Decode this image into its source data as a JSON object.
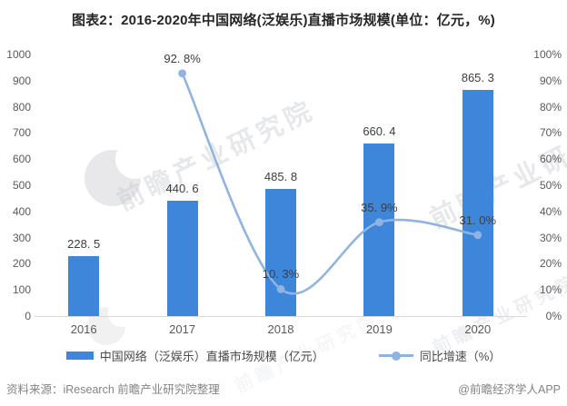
{
  "title": "图表2：2016-2020年中国网络(泛娱乐)直播市场规模(单位：亿元，%)",
  "chart_data": {
    "type": "bar",
    "subtype": "bar+line combo, dual axis",
    "categories": [
      "2016",
      "2017",
      "2018",
      "2019",
      "2020"
    ],
    "series": [
      {
        "name": "中国网络（泛娱乐）直播市场规模（亿元）",
        "type": "bar",
        "axis": "left",
        "values": [
          228.5,
          440.6,
          485.8,
          660.4,
          865.3
        ],
        "labels": [
          "228. 5",
          "440. 6",
          "485. 8",
          "660. 4",
          "865. 3"
        ]
      },
      {
        "name": "同比增速（%）",
        "type": "line",
        "axis": "right",
        "values": [
          null,
          92.8,
          10.3,
          35.9,
          31.0
        ],
        "labels": [
          null,
          "92. 8%",
          "10. 3%",
          "35. 9%",
          "31. 0%"
        ]
      }
    ],
    "left_axis": {
      "min": 0,
      "max": 1000,
      "step": 100,
      "ticks": [
        "0",
        "100",
        "200",
        "300",
        "400",
        "500",
        "600",
        "700",
        "800",
        "900",
        "1000"
      ]
    },
    "right_axis": {
      "min": 0,
      "max": 100,
      "step": 10,
      "ticks": [
        "0%",
        "10%",
        "20%",
        "30%",
        "40%",
        "50%",
        "60%",
        "70%",
        "80%",
        "90%",
        "100%"
      ]
    },
    "grid": false,
    "legend_position": "bottom"
  },
  "colors": {
    "bar": "#3E86D9",
    "line": "#8FB4E2",
    "title": "#262626",
    "tick": "#595959",
    "value_label": "#3d3d3d",
    "footer": "#848484",
    "baseline": "#d9d9d9"
  },
  "legend": [
    {
      "label": "中国网络（泛娱乐）直播市场规模（亿元）"
    },
    {
      "label": "同比增速（%）"
    }
  ],
  "footer": {
    "source": "资料来源：iResearch 前瞻产业研究院整理",
    "credit": "@前瞻经济学人APP"
  },
  "watermark": {
    "text": "前瞻产业研究院"
  }
}
